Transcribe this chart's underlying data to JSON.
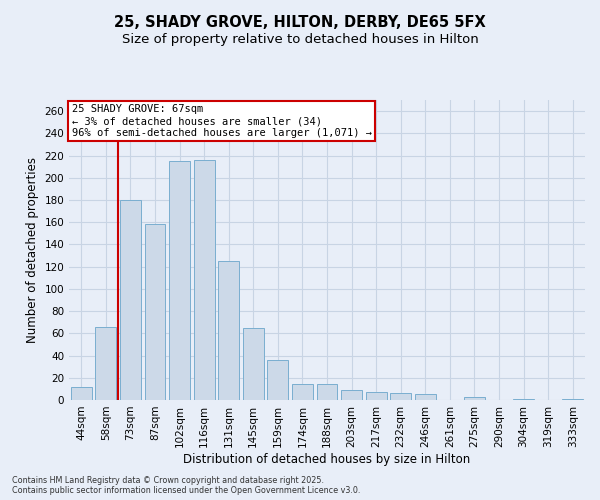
{
  "title": "25, SHADY GROVE, HILTON, DERBY, DE65 5FX",
  "subtitle": "Size of property relative to detached houses in Hilton",
  "xlabel": "Distribution of detached houses by size in Hilton",
  "ylabel": "Number of detached properties",
  "categories": [
    "44sqm",
    "58sqm",
    "73sqm",
    "87sqm",
    "102sqm",
    "116sqm",
    "131sqm",
    "145sqm",
    "159sqm",
    "174sqm",
    "188sqm",
    "203sqm",
    "217sqm",
    "232sqm",
    "246sqm",
    "261sqm",
    "275sqm",
    "290sqm",
    "304sqm",
    "319sqm",
    "333sqm"
  ],
  "values": [
    12,
    66,
    180,
    158,
    215,
    216,
    125,
    65,
    36,
    14,
    14,
    9,
    7,
    6,
    5,
    0,
    3,
    0,
    1,
    0,
    1
  ],
  "bar_color": "#ccd9e8",
  "bar_edge_color": "#7aaed0",
  "red_line_index": 1.5,
  "annotation_line1": "25 SHADY GROVE: 67sqm",
  "annotation_line2": "← 3% of detached houses are smaller (34)",
  "annotation_line3": "96% of semi-detached houses are larger (1,071) →",
  "annotation_box_color": "#ffffff",
  "annotation_box_edge": "#cc0000",
  "red_line_color": "#cc0000",
  "ylim": [
    0,
    270
  ],
  "yticks": [
    0,
    20,
    40,
    60,
    80,
    100,
    120,
    140,
    160,
    180,
    200,
    220,
    240,
    260
  ],
  "grid_color": "#c8d4e4",
  "background_color": "#e8eef8",
  "plot_bg_color": "#e8eef8",
  "footer_line1": "Contains HM Land Registry data © Crown copyright and database right 2025.",
  "footer_line2": "Contains public sector information licensed under the Open Government Licence v3.0.",
  "title_fontsize": 10.5,
  "subtitle_fontsize": 9.5,
  "tick_fontsize": 7.5,
  "ylabel_fontsize": 8.5,
  "xlabel_fontsize": 8.5,
  "annotation_fontsize": 7.5
}
